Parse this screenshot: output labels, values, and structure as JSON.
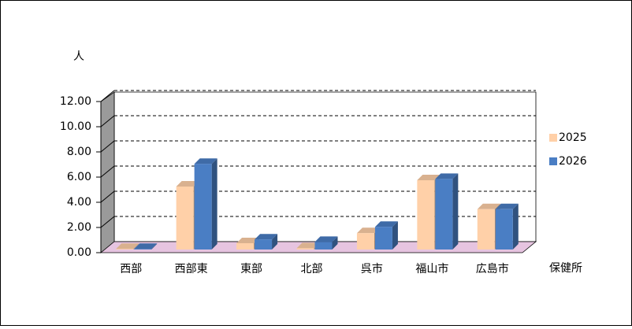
{
  "chart_data": {
    "type": "bar3d",
    "y_label": "人",
    "x_label": "保健所",
    "categories": [
      "西部",
      "西部東",
      "東部",
      "北部",
      "呉市",
      "福山市",
      "広島市"
    ],
    "series": [
      {
        "name": "2025",
        "color": "#FFD0A8",
        "values": [
          0.05,
          5.0,
          0.5,
          0.1,
          1.3,
          5.5,
          3.2
        ]
      },
      {
        "name": "2026",
        "color": "#4A7EC4",
        "values": [
          0.05,
          6.8,
          0.8,
          0.6,
          1.8,
          5.6,
          3.2
        ]
      }
    ],
    "ylim": [
      0,
      12
    ],
    "yticks": [
      {
        "value": 0,
        "label": "0.00"
      },
      {
        "value": 2,
        "label": "2.00"
      },
      {
        "value": 4,
        "label": "4.00"
      },
      {
        "value": 6,
        "label": "6.00"
      },
      {
        "value": 8,
        "label": "8.00"
      },
      {
        "value": 10,
        "label": "10.00"
      },
      {
        "value": 12,
        "label": "12.00"
      }
    ],
    "grid": true
  }
}
